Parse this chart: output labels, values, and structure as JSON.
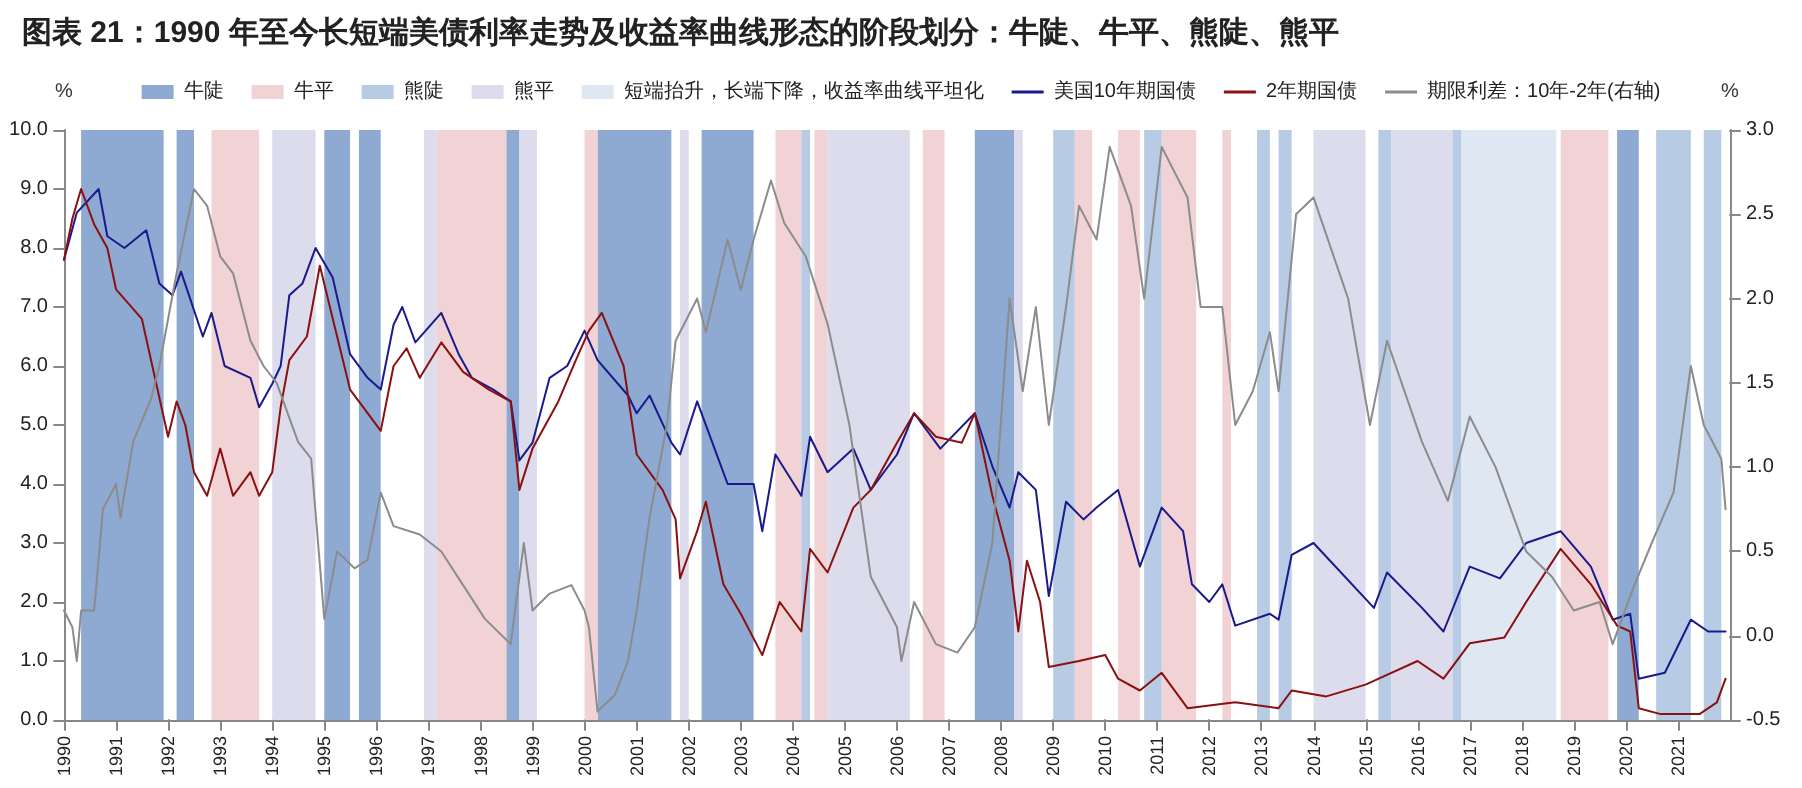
{
  "chart_data": {
    "type": "line",
    "title": "图表 21：1990 年至今长短端美债利率走势及收益率曲线形态的阶段划分：牛陡、牛平、熊陡、熊平",
    "ylabel": "%",
    "y2label": "%",
    "xlim": [
      "1990-01",
      "2022-01"
    ],
    "xticks": [
      "1990",
      "1991",
      "1992",
      "1993",
      "1994",
      "1995",
      "1996",
      "1997",
      "1998",
      "1999",
      "2000",
      "2001",
      "2002",
      "2003",
      "2004",
      "2005",
      "2006",
      "2007",
      "2008",
      "2009",
      "2010",
      "2011",
      "2012",
      "2013",
      "2014",
      "2015",
      "2016",
      "2017",
      "2018",
      "2019",
      "2020",
      "2021"
    ],
    "ylim": [
      0,
      10
    ],
    "yticks": [
      {
        "value": 0,
        "label": "0.0"
      },
      {
        "value": 1,
        "label": "1.0"
      },
      {
        "value": 2,
        "label": "2.0"
      },
      {
        "value": 3,
        "label": "3.0"
      },
      {
        "value": 4,
        "label": "4.0"
      },
      {
        "value": 5,
        "label": "5.0"
      },
      {
        "value": 6,
        "label": "6.0"
      },
      {
        "value": 7,
        "label": "7.0"
      },
      {
        "value": 8,
        "label": "8.0"
      },
      {
        "value": 9,
        "label": "9.0"
      },
      {
        "value": 10,
        "label": "10.0"
      }
    ],
    "y2lim": [
      -0.5,
      3
    ],
    "y2ticks": [
      -0.5,
      {
        "value": 0,
        "label": "0.0"
      },
      0.5,
      {
        "value": 1,
        "label": "1.0"
      },
      1.5,
      {
        "value": 2,
        "label": "2.0"
      },
      2.5,
      {
        "value": 3,
        "label": "3.0"
      }
    ],
    "legend": "top",
    "marker": "none",
    "bands": [
      {
        "axis": "x",
        "from": "1990-05",
        "to": "1991-12",
        "label": "牛陡",
        "color": "#8eaad3"
      },
      {
        "axis": "x",
        "from": "1992-03",
        "to": "1992-07",
        "color": "#8eaad3"
      },
      {
        "axis": "x",
        "from": "1995-01",
        "to": "1995-07",
        "color": "#8eaad3"
      },
      {
        "axis": "x",
        "from": "1995-09",
        "to": "1996-02",
        "color": "#8eaad3"
      },
      {
        "axis": "x",
        "from": "1998-07",
        "to": "1998-10",
        "color": "#8eaad3"
      },
      {
        "axis": "x",
        "from": "2000-04",
        "to": "2001-09",
        "color": "#8eaad3"
      },
      {
        "axis": "x",
        "from": "2002-04",
        "to": "2003-04",
        "color": "#8eaad3"
      },
      {
        "axis": "x",
        "from": "2007-07",
        "to": "2008-04",
        "color": "#8eaad3"
      },
      {
        "axis": "x",
        "from": "2019-11",
        "to": "2020-04",
        "color": "#8eaad3"
      },
      {
        "axis": "x",
        "from": "1992-11",
        "to": "1993-10",
        "label": "牛平",
        "color": "#f2d3d5"
      },
      {
        "axis": "x",
        "from": "1997-03",
        "to": "1998-07",
        "color": "#f2d3d5"
      },
      {
        "axis": "x",
        "from": "2000-01",
        "to": "2000-04",
        "color": "#f2d3d5"
      },
      {
        "axis": "x",
        "from": "2003-09",
        "to": "2004-03",
        "color": "#f2d3d5"
      },
      {
        "axis": "x",
        "from": "2004-06",
        "to": "2004-09",
        "color": "#f2d3d5"
      },
      {
        "axis": "x",
        "from": "2006-07",
        "to": "2006-12",
        "color": "#f2d3d5"
      },
      {
        "axis": "x",
        "from": "2009-06",
        "to": "2009-10",
        "color": "#f2d3d5"
      },
      {
        "axis": "x",
        "from": "2010-04",
        "to": "2010-09",
        "color": "#f2d3d5"
      },
      {
        "axis": "x",
        "from": "2011-02",
        "to": "2011-10",
        "color": "#f2d3d5"
      },
      {
        "axis": "x",
        "from": "2012-04",
        "to": "2012-06",
        "color": "#f2d3d5"
      },
      {
        "axis": "x",
        "from": "2018-10",
        "to": "2019-09",
        "color": "#f2d3d5"
      },
      {
        "axis": "x",
        "from": "2004-03",
        "to": "2004-05",
        "label": "熊陡",
        "color": "#b7cbe5"
      },
      {
        "axis": "x",
        "from": "2009-01",
        "to": "2009-06",
        "color": "#b7cbe5"
      },
      {
        "axis": "x",
        "from": "2010-10",
        "to": "2011-02",
        "color": "#b7cbe5"
      },
      {
        "axis": "x",
        "from": "2012-12",
        "to": "2013-03",
        "color": "#b7cbe5"
      },
      {
        "axis": "x",
        "from": "2013-05",
        "to": "2013-08",
        "color": "#b7cbe5"
      },
      {
        "axis": "x",
        "from": "2015-04",
        "to": "2015-07",
        "color": "#b7cbe5"
      },
      {
        "axis": "x",
        "from": "2016-09",
        "to": "2016-11",
        "color": "#b7cbe5"
      },
      {
        "axis": "x",
        "from": "2020-08",
        "to": "2021-04",
        "color": "#b7cbe5"
      },
      {
        "axis": "x",
        "from": "2021-07",
        "to": "2021-11",
        "color": "#b7cbe5"
      },
      {
        "axis": "x",
        "from": "1994-01",
        "to": "1994-11",
        "label": "熊平",
        "color": "#dcdcec"
      },
      {
        "axis": "x",
        "from": "1996-12",
        "to": "1997-03",
        "color": "#dcdcec"
      },
      {
        "axis": "x",
        "from": "1998-10",
        "to": "1999-02",
        "color": "#dcdcec"
      },
      {
        "axis": "x",
        "from": "2001-11",
        "to": "2002-01",
        "color": "#dcdcec"
      },
      {
        "axis": "x",
        "from": "2004-09",
        "to": "2006-04",
        "color": "#dcdcec"
      },
      {
        "axis": "x",
        "from": "2008-04",
        "to": "2008-06",
        "color": "#dcdcec"
      },
      {
        "axis": "x",
        "from": "2014-01",
        "to": "2015-01",
        "color": "#dcdcec"
      },
      {
        "axis": "x",
        "from": "2015-07",
        "to": "2016-09",
        "color": "#dcdcec"
      },
      {
        "axis": "x",
        "from": "2016-11",
        "to": "2018-09",
        "label": "短端抬升，长端下降，收益率曲线平坦化",
        "color": "#dfe7f3"
      }
    ],
    "series": [
      {
        "name": "美国10年期国债",
        "color": "#1a1a8c",
        "x": [
          "1990-01",
          "1990-04",
          "1990-09",
          "1990-11",
          "1991-03",
          "1991-08",
          "1991-11",
          "1992-02",
          "1992-04",
          "1992-09",
          "1992-11",
          "1993-02",
          "1993-08",
          "1993-10",
          "1994-01",
          "1994-03",
          "1994-05",
          "1994-08",
          "1994-11",
          "1995-03",
          "1995-07",
          "1995-11",
          "1996-02",
          "1996-05",
          "1996-07",
          "1996-10",
          "1997-04",
          "1997-08",
          "1997-11",
          "1998-04",
          "1998-08",
          "1998-10",
          "1999-01",
          "1999-05",
          "1999-09",
          "2000-01",
          "2000-04",
          "2000-11",
          "2001-01",
          "2001-04",
          "2001-09",
          "2001-11",
          "2002-03",
          "2002-07",
          "2002-10",
          "2003-04",
          "2003-06",
          "2003-09",
          "2004-03",
          "2004-05",
          "2004-09",
          "2005-03",
          "2005-07",
          "2006-01",
          "2006-05",
          "2006-11",
          "2007-07",
          "2007-11",
          "2008-03",
          "2008-05",
          "2008-09",
          "2008-12",
          "2009-04",
          "2009-08",
          "2009-11",
          "2010-04",
          "2010-09",
          "2011-02",
          "2011-07",
          "2011-09",
          "2012-01",
          "2012-04",
          "2012-07",
          "2013-03",
          "2013-05",
          "2013-08",
          "2014-01",
          "2015-03",
          "2015-06",
          "2016-02",
          "2016-07",
          "2017-01",
          "2017-08",
          "2018-02",
          "2018-10",
          "2019-05",
          "2019-10",
          "2020-02",
          "2020-04",
          "2020-10",
          "2021-04",
          "2021-08",
          "2021-12"
        ],
        "values": [
          7.8,
          8.6,
          9.0,
          8.2,
          8.0,
          8.3,
          7.4,
          7.2,
          7.6,
          6.5,
          6.9,
          6.0,
          5.8,
          5.3,
          5.7,
          6.0,
          7.2,
          7.4,
          8.0,
          7.5,
          6.2,
          5.8,
          5.6,
          6.7,
          7.0,
          6.4,
          6.9,
          6.2,
          5.8,
          5.6,
          5.4,
          4.4,
          4.7,
          5.8,
          6.0,
          6.6,
          6.1,
          5.5,
          5.2,
          5.5,
          4.7,
          4.5,
          5.4,
          4.6,
          4.0,
          4.0,
          3.2,
          4.5,
          3.8,
          4.8,
          4.2,
          4.6,
          3.9,
          4.5,
          5.2,
          4.6,
          5.2,
          4.3,
          3.6,
          4.2,
          3.9,
          2.1,
          3.7,
          3.4,
          3.6,
          3.9,
          2.6,
          3.6,
          3.2,
          2.3,
          2.0,
          2.3,
          1.6,
          1.8,
          1.7,
          2.8,
          3.0,
          1.9,
          2.5,
          1.9,
          1.5,
          2.6,
          2.4,
          3.0,
          3.2,
          2.6,
          1.7,
          1.8,
          0.7,
          0.8,
          1.7,
          1.5,
          1.5
        ]
      },
      {
        "name": "2年期国债",
        "color": "#8b1010",
        "x": [
          "1990-01",
          "1990-03",
          "1990-05",
          "1990-08",
          "1990-11",
          "1991-01",
          "1991-07",
          "1991-10",
          "1992-01",
          "1992-03",
          "1992-05",
          "1992-07",
          "1992-10",
          "1993-01",
          "1993-04",
          "1993-08",
          "1993-10",
          "1994-01",
          "1994-03",
          "1994-05",
          "1994-09",
          "1994-12",
          "1995-04",
          "1995-07",
          "1995-11",
          "1996-02",
          "1996-05",
          "1996-08",
          "1996-11",
          "1997-04",
          "1997-09",
          "1998-03",
          "1998-08",
          "1998-10",
          "1999-01",
          "1999-07",
          "1999-11",
          "2000-02",
          "2000-05",
          "2000-10",
          "2001-01",
          "2001-07",
          "2001-10",
          "2001-11",
          "2002-03",
          "2002-05",
          "2002-09",
          "2003-01",
          "2003-06",
          "2003-10",
          "2004-03",
          "2004-05",
          "2004-09",
          "2005-03",
          "2005-07",
          "2006-01",
          "2006-05",
          "2006-10",
          "2007-04",
          "2007-07",
          "2007-11",
          "2008-03",
          "2008-05",
          "2008-07",
          "2008-10",
          "2008-12",
          "2009-07",
          "2010-01",
          "2010-04",
          "2010-09",
          "2011-02",
          "2011-08",
          "2012-07",
          "2013-05",
          "2013-08",
          "2014-04",
          "2015-01",
          "2016-01",
          "2016-07",
          "2017-01",
          "2017-09",
          "2018-02",
          "2018-10",
          "2019-05",
          "2019-11",
          "2020-02",
          "2020-04",
          "2020-09",
          "2021-06",
          "2021-10",
          "2021-12"
        ],
        "values": [
          7.8,
          8.5,
          9.0,
          8.4,
          8.0,
          7.3,
          6.8,
          5.8,
          4.8,
          5.4,
          5.0,
          4.2,
          3.8,
          4.6,
          3.8,
          4.2,
          3.8,
          4.2,
          5.3,
          6.1,
          6.5,
          7.7,
          6.5,
          5.6,
          5.2,
          4.9,
          6.0,
          6.3,
          5.8,
          6.4,
          5.9,
          5.6,
          5.4,
          3.9,
          4.6,
          5.4,
          6.1,
          6.6,
          6.9,
          6.0,
          4.5,
          3.9,
          3.4,
          2.4,
          3.2,
          3.7,
          2.3,
          1.8,
          1.1,
          2.0,
          1.5,
          2.9,
          2.5,
          3.6,
          3.9,
          4.7,
          5.2,
          4.8,
          4.7,
          5.2,
          3.8,
          2.7,
          1.5,
          2.7,
          2.0,
          0.9,
          1.0,
          1.1,
          0.7,
          0.5,
          0.8,
          0.2,
          0.3,
          0.2,
          0.5,
          0.4,
          0.6,
          1.0,
          0.7,
          1.3,
          1.4,
          2.0,
          2.9,
          2.3,
          1.6,
          1.5,
          0.2,
          0.1,
          0.1,
          0.3,
          0.7
        ]
      },
      {
        "name": "期限利差：10年-2年(右轴)",
        "color": "#8c8c8c",
        "axis": "y2",
        "x": [
          "1990-01",
          "1990-03",
          "1990-04",
          "1990-05",
          "1990-08",
          "1990-10",
          "1991-01",
          "1991-02",
          "1991-05",
          "1991-09",
          "1991-11",
          "1992-03",
          "1992-07",
          "1992-10",
          "1993-01",
          "1993-04",
          "1993-08",
          "1993-11",
          "1994-02",
          "1994-07",
          "1994-10",
          "1995-01",
          "1995-04",
          "1995-08",
          "1995-11",
          "1996-02",
          "1996-05",
          "1996-11",
          "1997-04",
          "1997-09",
          "1998-02",
          "1998-08",
          "1998-11",
          "1999-01",
          "1999-05",
          "1999-10",
          "2000-01",
          "2000-02",
          "2000-04",
          "2000-08",
          "2000-11",
          "2001-01",
          "2001-04",
          "2001-08",
          "2001-10",
          "2002-03",
          "2002-05",
          "2002-10",
          "2003-01",
          "2003-04",
          "2003-08",
          "2003-11",
          "2004-04",
          "2004-09",
          "2005-02",
          "2005-07",
          "2006-01",
          "2006-02",
          "2006-05",
          "2006-10",
          "2007-03",
          "2007-07",
          "2007-11",
          "2008-03",
          "2008-06",
          "2008-09",
          "2008-12",
          "2009-04",
          "2009-07",
          "2009-11",
          "2010-02",
          "2010-07",
          "2010-10",
          "2011-02",
          "2011-08",
          "2011-11",
          "2012-01",
          "2012-04",
          "2012-07",
          "2012-11",
          "2013-03",
          "2013-05",
          "2013-09",
          "2014-01",
          "2014-09",
          "2015-02",
          "2015-06",
          "2016-02",
          "2016-08",
          "2017-01",
          "2017-07",
          "2018-02",
          "2018-08",
          "2019-01",
          "2019-07",
          "2019-10",
          "2020-03",
          "2020-07",
          "2020-12",
          "2021-04",
          "2021-07",
          "2021-11",
          "2021-12"
        ],
        "values": [
          0.15,
          0.05,
          -0.15,
          0.15,
          0.15,
          0.75,
          0.9,
          0.7,
          1.15,
          1.4,
          1.6,
          2.15,
          2.65,
          2.55,
          2.25,
          2.15,
          1.75,
          1.6,
          1.5,
          1.15,
          1.05,
          0.1,
          0.5,
          0.4,
          0.45,
          0.85,
          0.65,
          0.6,
          0.5,
          0.3,
          0.1,
          -0.05,
          0.55,
          0.15,
          0.25,
          0.3,
          0.15,
          0.05,
          -0.45,
          -0.35,
          -0.15,
          0.15,
          0.7,
          1.25,
          1.75,
          2.0,
          1.8,
          2.35,
          2.05,
          2.35,
          2.7,
          2.45,
          2.25,
          1.85,
          1.25,
          0.35,
          0.05,
          -0.15,
          0.2,
          -0.05,
          -0.1,
          0.05,
          0.55,
          2.0,
          1.45,
          1.95,
          1.25,
          1.95,
          2.55,
          2.35,
          2.9,
          2.55,
          2.0,
          2.9,
          2.6,
          1.95,
          1.95,
          1.95,
          1.25,
          1.45,
          1.8,
          1.45,
          2.5,
          2.6,
          2.0,
          1.25,
          1.75,
          1.15,
          0.8,
          1.3,
          1.0,
          0.5,
          0.35,
          0.15,
          0.2,
          -0.05,
          0.3,
          0.55,
          0.85,
          1.6,
          1.25,
          1.05,
          0.75
        ]
      }
    ]
  }
}
